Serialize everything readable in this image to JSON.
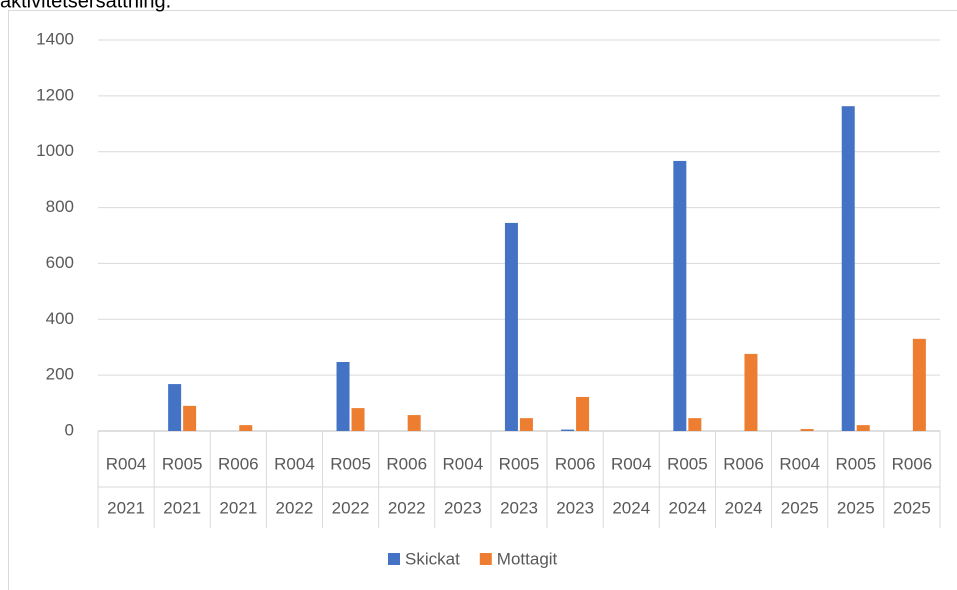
{
  "chart_data": {
    "type": "bar",
    "title": "aktivitetsersättning.",
    "categories": [
      "R004",
      "R005",
      "R006",
      "R004",
      "R005",
      "R006",
      "R004",
      "R005",
      "R006",
      "R004",
      "R005",
      "R006",
      "R004",
      "R005",
      "R006"
    ],
    "category_years": [
      "2021",
      "2021",
      "2021",
      "2022",
      "2022",
      "2022",
      "2023",
      "2023",
      "2023",
      "2024",
      "2024",
      "2024",
      "2025",
      "2025",
      "2025"
    ],
    "series": [
      {
        "name": "Skickat",
        "color": "#4472c4",
        "values": [
          0,
          168,
          0,
          0,
          247,
          0,
          0,
          745,
          5,
          0,
          967,
          0,
          0,
          1163,
          0
        ]
      },
      {
        "name": "Mottagit",
        "color": "#ed7d31",
        "values": [
          0,
          90,
          21,
          0,
          82,
          57,
          0,
          46,
          122,
          0,
          46,
          276,
          7,
          21,
          330
        ]
      }
    ],
    "ylim": [
      0,
      1400
    ],
    "yticks": [
      0,
      200,
      400,
      600,
      800,
      1000,
      1200,
      1400
    ],
    "grid": true,
    "legend": "bottom"
  }
}
